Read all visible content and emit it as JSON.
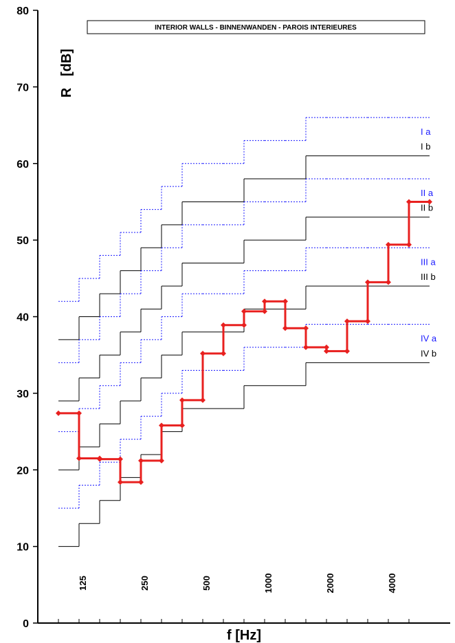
{
  "chart_data": {
    "type": "step",
    "title": "INTERIOR WALLS - BINNENWANDEN - PAROIS INTERIEURES",
    "x_label": "f [Hz]",
    "y_label": "R   [dB]",
    "categories": [
      null,
      "125",
      null,
      null,
      "250",
      null,
      null,
      "500",
      null,
      null,
      "1000",
      null,
      null,
      "2000",
      null,
      null,
      "4000",
      null
    ],
    "ylim": [
      0,
      80
    ],
    "yticks": [
      0,
      10,
      20,
      30,
      40,
      50,
      60,
      70,
      80
    ],
    "series": [
      {
        "name": "I a",
        "color": "#1a1aff",
        "dash": "dotted",
        "values": [
          42,
          45,
          48,
          51,
          54,
          57,
          60,
          60,
          60,
          63,
          63,
          63,
          66,
          66,
          66,
          66,
          66,
          66
        ]
      },
      {
        "name": "I b",
        "color": "#000000",
        "dash": "solid",
        "values": [
          37,
          40,
          43,
          46,
          49,
          52,
          55,
          55,
          55,
          58,
          58,
          58,
          61,
          61,
          61,
          61,
          61,
          61
        ]
      },
      {
        "name": "II a",
        "color": "#1a1aff",
        "dash": "dotted",
        "values": [
          34,
          37,
          40,
          43,
          46,
          49,
          52,
          52,
          52,
          55,
          55,
          55,
          58,
          58,
          58,
          58,
          58,
          58
        ]
      },
      {
        "name": "II b",
        "color": "#000000",
        "dash": "solid",
        "values": [
          29,
          32,
          35,
          38,
          41,
          44,
          47,
          47,
          47,
          50,
          50,
          50,
          53,
          53,
          53,
          53,
          53,
          53
        ]
      },
      {
        "name": "III a",
        "color": "#1a1aff",
        "dash": "dotted",
        "values": [
          25,
          28,
          31,
          34,
          37,
          40,
          43,
          43,
          43,
          46,
          46,
          46,
          49,
          49,
          49,
          49,
          49,
          49
        ]
      },
      {
        "name": "III b",
        "color": "#000000",
        "dash": "solid",
        "values": [
          20,
          23,
          26,
          29,
          32,
          35,
          38,
          38,
          38,
          41,
          41,
          41,
          44,
          44,
          44,
          44,
          44,
          44
        ]
      },
      {
        "name": "IV a",
        "color": "#1a1aff",
        "dash": "dotted",
        "values": [
          15,
          18,
          21,
          24,
          27,
          30,
          33,
          33,
          33,
          36,
          36,
          36,
          39,
          39,
          39,
          39,
          39,
          39
        ]
      },
      {
        "name": "IV b",
        "color": "#000000",
        "dash": "solid",
        "values": [
          10,
          13,
          16,
          19,
          22,
          25,
          28,
          28,
          28,
          31,
          31,
          31,
          34,
          34,
          34,
          34,
          34,
          34
        ]
      },
      {
        "color": "#e8201f",
        "dash": "solid",
        "markers": true,
        "values": [
          27.4,
          21.5,
          21.4,
          18.4,
          21.2,
          25.8,
          29.1,
          35.2,
          38.9,
          40.7,
          42.0,
          38.5,
          36.0,
          35.5,
          39.4,
          44.5,
          49.4,
          55.0
        ]
      }
    ]
  }
}
